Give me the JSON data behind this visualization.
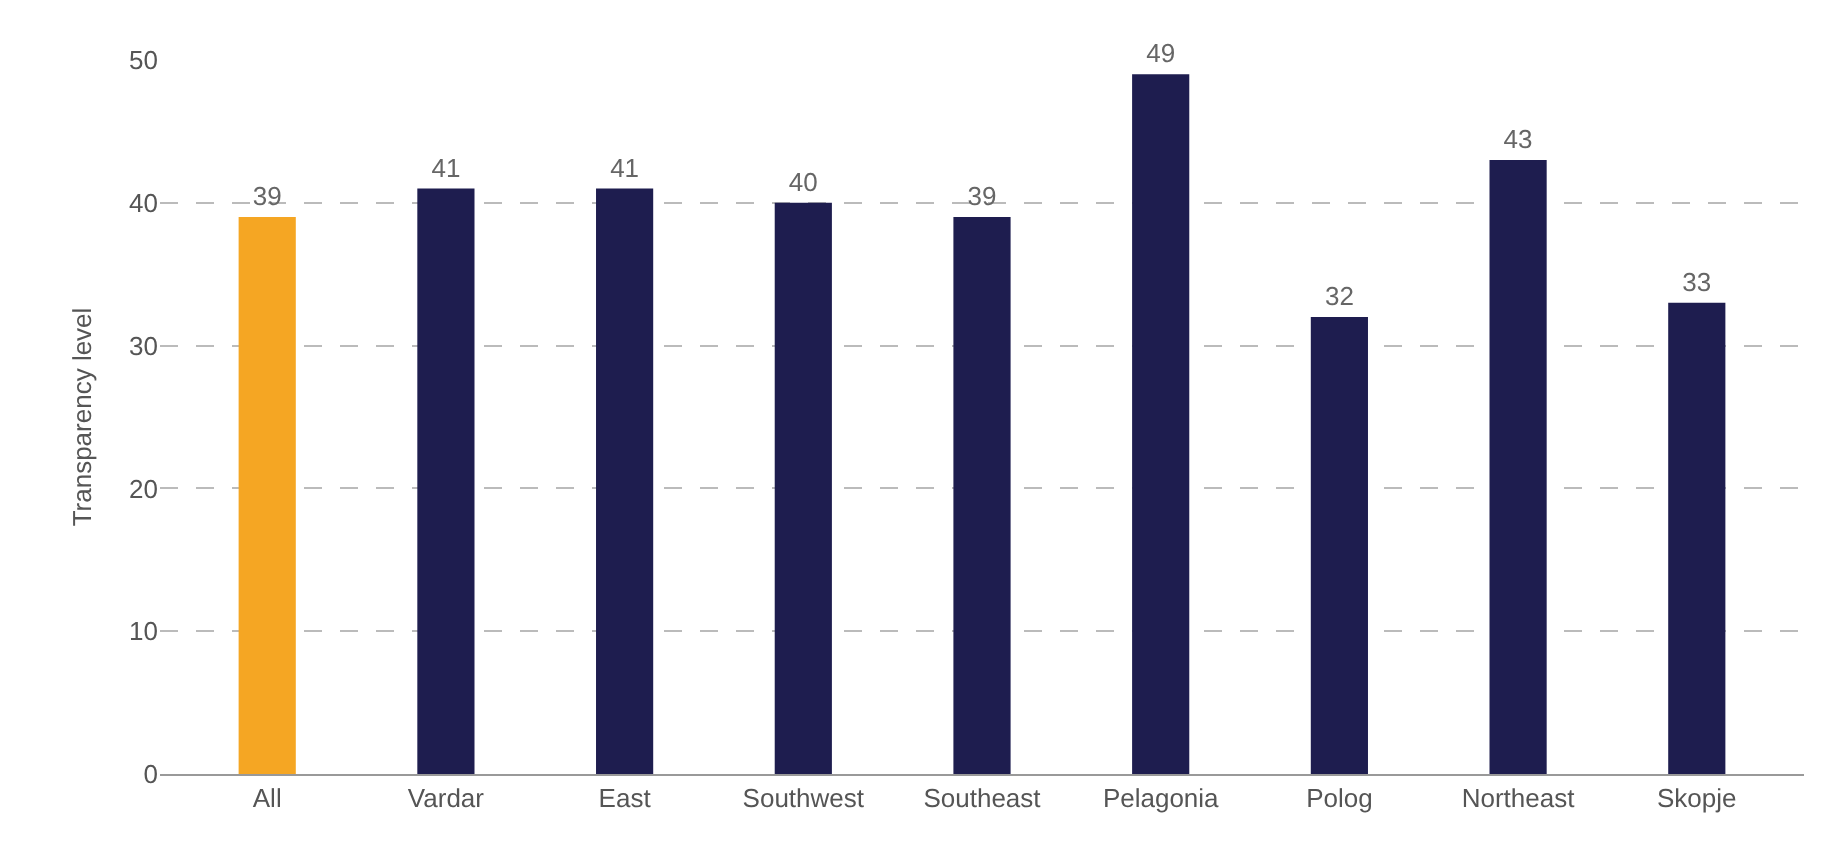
{
  "chart_data": {
    "type": "bar",
    "ylabel": "Transparency level",
    "categories": [
      "All",
      "Vardar",
      "East",
      "Southwest",
      "Southeast",
      "Pelagonia",
      "Polog",
      "Northeast",
      "Skopje"
    ],
    "values": [
      39,
      41,
      41,
      40,
      39,
      49,
      32,
      43,
      33
    ],
    "colors": [
      "#f5a623",
      "#1e1d4f",
      "#1e1d4f",
      "#1e1d4f",
      "#1e1d4f",
      "#1e1d4f",
      "#1e1d4f",
      "#1e1d4f",
      "#1e1d4f"
    ],
    "ylim": [
      0,
      50
    ],
    "yticks": [
      0,
      10,
      20,
      30,
      40,
      50
    ],
    "grid": "y",
    "data_labels": true
  }
}
